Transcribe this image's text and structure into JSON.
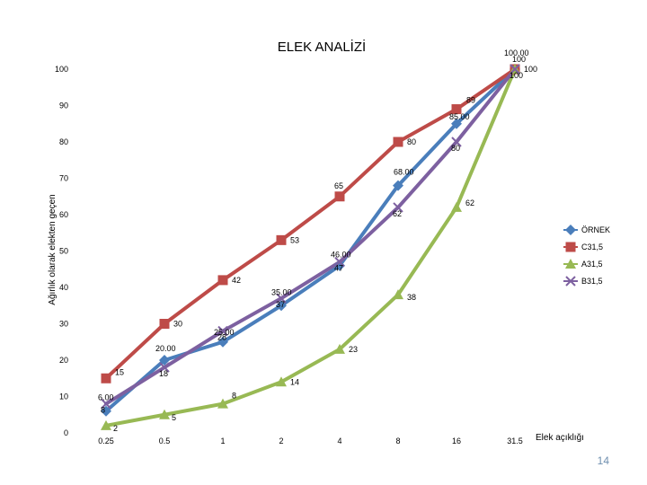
{
  "page_number": "14",
  "chart_data": {
    "type": "line",
    "title": "ELEK ANALİZİ",
    "xlabel": "Elek açıklığı",
    "ylabel": "Ağırlık olarak elekten geçen",
    "categories": [
      "0.25",
      "0.5",
      "1",
      "2",
      "4",
      "8",
      "16",
      "31.5"
    ],
    "ylim": [
      0,
      100
    ],
    "yticks": [
      0,
      10,
      20,
      30,
      40,
      50,
      60,
      70,
      80,
      90,
      100
    ],
    "grid": false,
    "legend_position": "right",
    "series": [
      {
        "name": "ÖRNEK",
        "color": "#4a7ebb",
        "marker": "diamond",
        "values": [
          6,
          20,
          25,
          35,
          46,
          68,
          85,
          100
        ],
        "labels": [
          "6.00",
          "20.00",
          "25.00",
          "35.00",
          "46.00",
          "68.00",
          "85.00",
          "100.00"
        ]
      },
      {
        "name": "C31,5",
        "color": "#be4b48",
        "marker": "square",
        "values": [
          15,
          30,
          42,
          53,
          65,
          80,
          89,
          100
        ],
        "labels": [
          "15",
          "30",
          "42",
          "53",
          "65",
          "80",
          "89",
          "100"
        ]
      },
      {
        "name": "A31,5",
        "color": "#98b954",
        "marker": "triangle",
        "values": [
          2,
          5,
          8,
          14,
          23,
          38,
          62,
          100
        ],
        "labels": [
          "2",
          "5",
          "8",
          "14",
          "23",
          "38",
          "62",
          "100"
        ]
      },
      {
        "name": "B31,5",
        "color": "#7d60a0",
        "marker": "x",
        "values": [
          8,
          18,
          28,
          37,
          47,
          62,
          80,
          100
        ],
        "labels": [
          "8",
          "18",
          "28",
          "37",
          "47",
          "62",
          "80",
          "100"
        ]
      }
    ]
  }
}
